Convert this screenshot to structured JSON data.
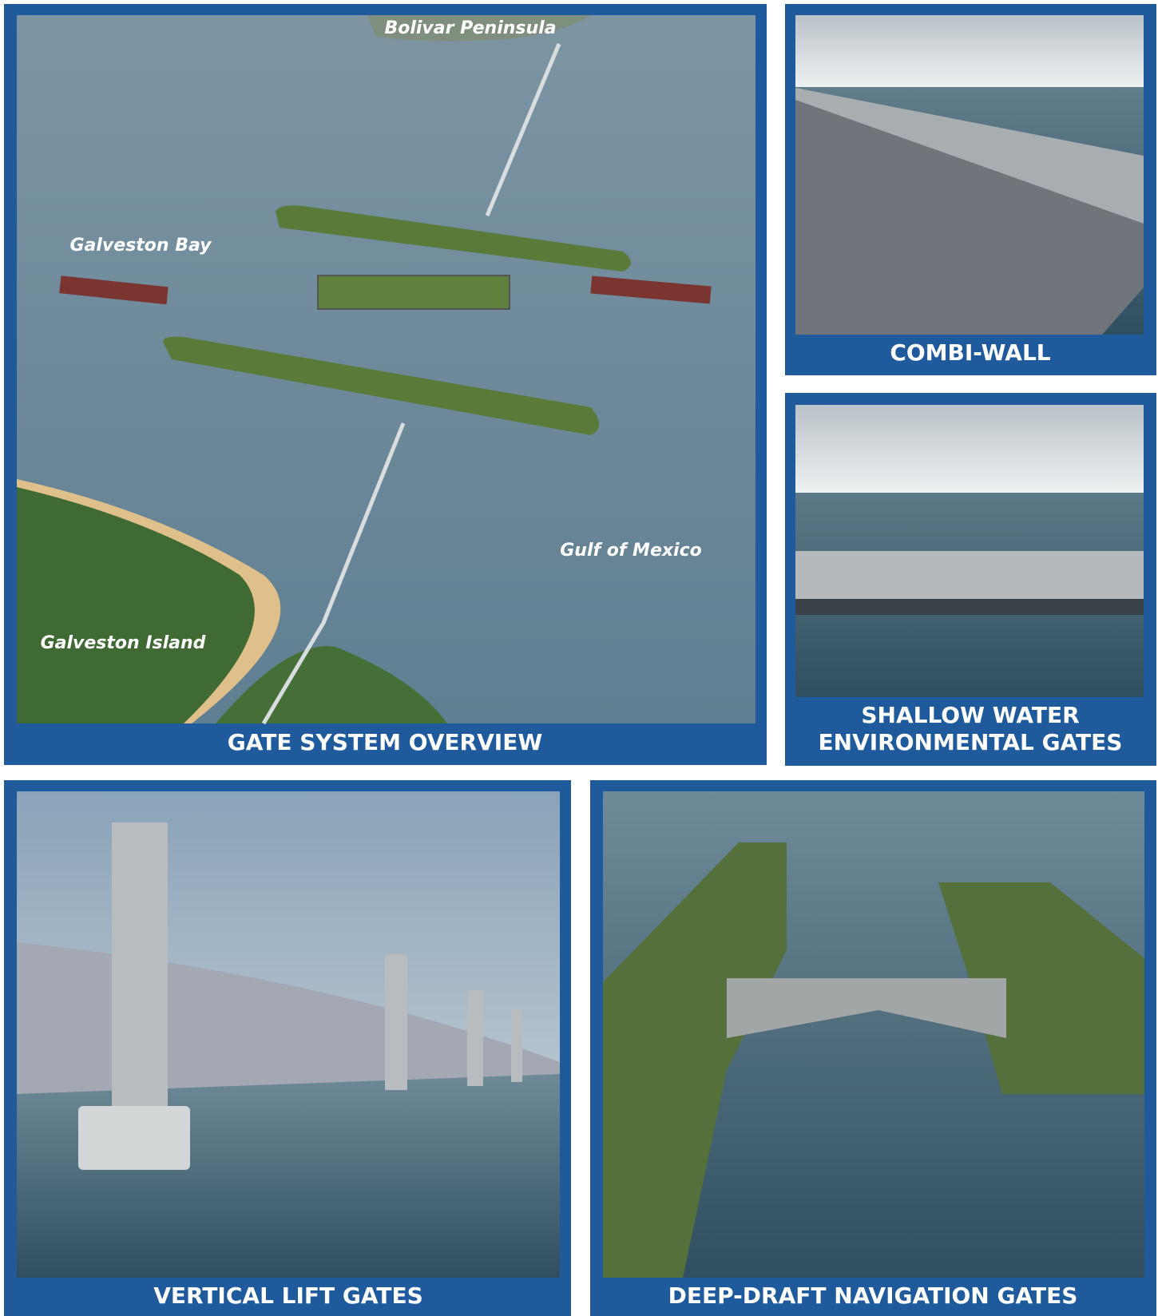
{
  "panels": [
    {
      "caption": [
        "GATE SYSTEM OVERVIEW"
      ]
    },
    {
      "caption": [
        "COMBI-WALL"
      ]
    },
    {
      "caption": [
        "SHALLOW WATER",
        "ENVIRONMENTAL GATES"
      ]
    },
    {
      "caption": [
        "VERTICAL LIFT GATES"
      ]
    },
    {
      "caption": [
        "DEEP-DRAFT NAVIGATION GATES"
      ]
    }
  ],
  "map_labels": [
    "Bolivar Peninsula",
    "Galveston Bay",
    "Gulf of Mexico",
    "Galveston Island"
  ]
}
